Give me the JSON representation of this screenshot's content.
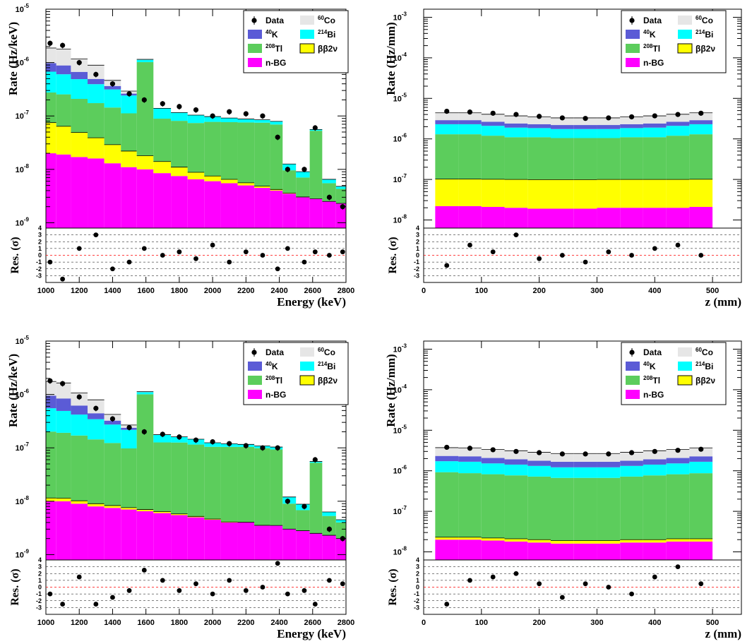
{
  "colors": {
    "co60": "#e6e6e6",
    "k40": "#5b5bd6",
    "bi214": "#00ffff",
    "tl208": "#5ccd5c",
    "bb2nu": "#ffff00",
    "nbg": "#ff00ff",
    "data": "#000000",
    "zero_line": "#ff0000"
  },
  "legend": {
    "data": "Data",
    "co60": {
      "sup": "60",
      "base": "Co"
    },
    "k40": {
      "sup": "40",
      "base": "K"
    },
    "bi214": {
      "sup": "214",
      "base": "Bi"
    },
    "tl208": {
      "sup": "208",
      "base": "Tl"
    },
    "bb2nu": "ββ2ν",
    "nbg": "n-BG"
  },
  "chart_data": [
    {
      "type": "stacked-histogram-with-residuals",
      "xlabel": "Energy (keV)",
      "ylabel": "Rate (Hz/keV)",
      "res_ylabel": "Res. (σ)",
      "xlim": [
        1000,
        2800
      ],
      "xticks": [
        "1000",
        "1200",
        "1400",
        "1600",
        "1800",
        "2000",
        "2200",
        "2400",
        "2600",
        "2800"
      ],
      "ylim_log": [
        -9.1,
        -5
      ],
      "yticks": [
        {
          "base": "10",
          "exp": "-9"
        },
        {
          "base": "10",
          "exp": "-8"
        },
        {
          "base": "10",
          "exp": "-7"
        },
        {
          "base": "10",
          "exp": "-6"
        },
        {
          "base": "10",
          "exp": "-5"
        }
      ],
      "res_ylim": [
        -4,
        4
      ],
      "res_yticks": [
        "-3",
        "-2",
        "-1",
        "0",
        "1",
        "2",
        "3",
        "4"
      ],
      "x": [
        1025,
        1100,
        1200,
        1300,
        1400,
        1500,
        1590,
        1700,
        1800,
        1900,
        2000,
        2100,
        2200,
        2300,
        2390,
        2450,
        2550,
        2615,
        2700,
        2780
      ],
      "components": {
        "nbg": [
          2e-08,
          1.9e-08,
          1.7e-08,
          1.6e-08,
          1.3e-08,
          1.1e-08,
          1e-08,
          8.5e-09,
          7.5e-09,
          6.5e-09,
          6e-09,
          5.5e-09,
          5e-09,
          4.5e-09,
          4e-09,
          3.5e-09,
          3e-09,
          2.8e-09,
          2.5e-09,
          2.3e-09
        ],
        "bb2nu": [
          5.5e-08,
          4.5e-08,
          3.2e-08,
          2.3e-08,
          1.6e-08,
          1.1e-08,
          8e-09,
          5.5e-09,
          3.5e-09,
          2.3e-09,
          1.5e-09,
          1e-09,
          6e-10,
          3.5e-10,
          2e-10,
          1e-10,
          4e-11,
          2e-11,
          1e-11,
          5e-12
        ],
        "tl208": [
          2e-07,
          1.9e-07,
          1.6e-07,
          1.35e-07,
          1.15e-07,
          9e-08,
          1e-06,
          7.5e-08,
          7e-08,
          6.5e-08,
          7e-08,
          7e-08,
          7e-08,
          7e-08,
          6.5e-08,
          6e-09,
          4e-09,
          5e-08,
          3e-09,
          2e-09
        ],
        "bi214": [
          4e-07,
          3.5e-07,
          2.8e-07,
          2.2e-07,
          1.7e-07,
          1.3e-07,
          1.1e-07,
          5e-08,
          3.5e-08,
          3e-08,
          2e-08,
          1.5e-08,
          1.2e-08,
          1e-08,
          1e-08,
          3e-09,
          2e-09,
          3e-09,
          1e-09,
          5e-10
        ],
        "k40": [
          3e-07,
          2.8e-07,
          1.8e-07,
          1e-07,
          5e-08,
          2e-08,
          0,
          0,
          0,
          0,
          0,
          0,
          0,
          0,
          0,
          0,
          0,
          0,
          0,
          0
        ],
        "co60": [
          9e-07,
          9e-07,
          5e-07,
          4e-07,
          1e-07,
          3e-08,
          2e-08,
          0,
          0,
          0,
          0,
          0,
          0,
          0,
          0,
          0,
          0,
          0,
          0,
          0
        ]
      },
      "data_y": [
        2.3e-06,
        2.1e-06,
        1e-06,
        6e-07,
        4e-07,
        2.6e-07,
        2e-07,
        1.7e-07,
        1.5e-07,
        1.3e-07,
        1e-07,
        1.2e-07,
        1.1e-07,
        1e-07,
        4e-08,
        1e-08,
        1e-08,
        6e-08,
        3e-09,
        2e-09
      ],
      "residuals": [
        -1.0,
        -3.5,
        1.0,
        3.0,
        -2.0,
        -1.0,
        1.0,
        0.0,
        0.5,
        -0.5,
        1.5,
        -1.0,
        0.5,
        0.0,
        -2.0,
        1.0,
        -1.0,
        0.5,
        0.0,
        0.5
      ]
    },
    {
      "type": "stacked-histogram-with-residuals",
      "xlabel": "z (mm)",
      "ylabel": "Rate (Hz/mm)",
      "res_ylabel": "Res. (σ)",
      "xlim": [
        0,
        550
      ],
      "xticks": [
        "0",
        "100",
        "200",
        "300",
        "400",
        "500"
      ],
      "ylim_log": [
        -8.2,
        -2.8
      ],
      "yticks": [
        {
          "base": "10",
          "exp": "-8"
        },
        {
          "base": "10",
          "exp": "-7"
        },
        {
          "base": "10",
          "exp": "-6"
        },
        {
          "base": "10",
          "exp": "-5"
        },
        {
          "base": "10",
          "exp": "-4"
        },
        {
          "base": "10",
          "exp": "-3"
        }
      ],
      "res_ylim": [
        -4,
        4
      ],
      "res_yticks": [
        "-3",
        "-2",
        "-1",
        "0",
        "1",
        "2",
        "3",
        "4"
      ],
      "x": [
        40,
        80,
        120,
        160,
        200,
        240,
        280,
        320,
        360,
        400,
        440,
        480
      ],
      "components": {
        "nbg": [
          2.2e-08,
          2.2e-08,
          2.1e-08,
          2e-08,
          1.9e-08,
          1.9e-08,
          1.9e-08,
          2e-08,
          2e-08,
          2e-08,
          2e-08,
          2.1e-08
        ],
        "bb2nu": [
          8e-08,
          8e-08,
          8e-08,
          8e-08,
          8e-08,
          8e-08,
          8e-08,
          8e-08,
          8e-08,
          8e-08,
          8e-08,
          8e-08
        ],
        "tl208": [
          1.2e-06,
          1.2e-06,
          1.1e-06,
          1e-06,
          1e-06,
          9.5e-07,
          9.5e-07,
          9.5e-07,
          1e-06,
          1e-06,
          1.1e-06,
          1.2e-06
        ],
        "bi214": [
          1e-06,
          1e-06,
          9e-07,
          8e-07,
          7.5e-07,
          7e-07,
          7e-07,
          7e-07,
          7.5e-07,
          8e-07,
          9e-07,
          1e-06
        ],
        "k40": [
          6e-07,
          6e-07,
          5.5e-07,
          5e-07,
          4.5e-07,
          4.5e-07,
          4.5e-07,
          4.5e-07,
          4.5e-07,
          5e-07,
          5.5e-07,
          6e-07
        ],
        "co60": [
          1.5e-06,
          1.5e-06,
          1.4e-06,
          1.3e-06,
          1.2e-06,
          1.1e-06,
          1.1e-06,
          1.1e-06,
          1.2e-06,
          1.3e-06,
          1.4e-06,
          1.5e-06
        ]
      },
      "data_y": [
        4.8e-06,
        4.6e-06,
        4.3e-06,
        4e-06,
        3.6e-06,
        3.3e-06,
        3.2e-06,
        3.3e-06,
        3.5e-06,
        3.7e-06,
        4e-06,
        4.3e-06
      ],
      "residuals": [
        -1.5,
        1.5,
        0.5,
        3.0,
        -0.5,
        0.0,
        -1.0,
        0.5,
        0.0,
        1.0,
        1.5,
        0.0
      ]
    },
    {
      "type": "stacked-histogram-with-residuals",
      "xlabel": "Energy (keV)",
      "ylabel": "Rate (Hz/keV)",
      "res_ylabel": "Res. (σ)",
      "xlim": [
        1000,
        2800
      ],
      "xticks": [
        "1000",
        "1200",
        "1400",
        "1600",
        "1800",
        "2000",
        "2200",
        "2400",
        "2600",
        "2800"
      ],
      "ylim_log": [
        -9.1,
        -5
      ],
      "yticks": [
        {
          "base": "10",
          "exp": "-9"
        },
        {
          "base": "10",
          "exp": "-8"
        },
        {
          "base": "10",
          "exp": "-7"
        },
        {
          "base": "10",
          "exp": "-6"
        },
        {
          "base": "10",
          "exp": "-5"
        }
      ],
      "res_ylim": [
        -4,
        4
      ],
      "res_yticks": [
        "-3",
        "-2",
        "-1",
        "0",
        "1",
        "2",
        "3",
        "4"
      ],
      "x": [
        1025,
        1100,
        1200,
        1300,
        1400,
        1500,
        1590,
        1700,
        1800,
        1900,
        2000,
        2100,
        2200,
        2300,
        2390,
        2450,
        2550,
        2615,
        2700,
        2780
      ],
      "components": {
        "nbg": [
          1e-08,
          1e-08,
          9e-09,
          8e-09,
          7.5e-09,
          7e-09,
          6.5e-09,
          6e-09,
          5.5e-09,
          5e-09,
          4.5e-09,
          4e-09,
          4e-09,
          3.5e-09,
          3.5e-09,
          3e-09,
          2.8e-09,
          2.5e-09,
          2.3e-09,
          2e-09
        ],
        "bb2nu": [
          1.5e-09,
          1.4e-09,
          1.2e-09,
          1e-09,
          8e-10,
          6e-10,
          5e-10,
          4e-10,
          3e-10,
          2e-10,
          1.5e-10,
          1e-10,
          6e-11,
          4e-11,
          2e-11,
          1e-11,
          5e-12,
          2e-12,
          1e-12,
          5e-13
        ],
        "tl208": [
          1.9e-07,
          1.8e-07,
          1.6e-07,
          1.35e-07,
          1.15e-07,
          9e-08,
          1e-06,
          1.2e-07,
          1.2e-07,
          1.1e-07,
          1e-07,
          1e-07,
          1e-07,
          9.5e-08,
          9e-08,
          6e-09,
          4e-09,
          5e-08,
          3e-09,
          2e-09
        ],
        "bi214": [
          3.5e-07,
          3e-07,
          2.5e-07,
          2e-07,
          1.5e-07,
          1.2e-07,
          1e-07,
          5e-08,
          3.5e-08,
          3e-08,
          2e-08,
          1.5e-08,
          1.2e-08,
          1e-08,
          1e-08,
          3e-09,
          2e-09,
          3e-09,
          1e-09,
          5e-10
        ],
        "k40": [
          4e-07,
          3.5e-07,
          2e-07,
          1e-07,
          5e-08,
          2e-08,
          0,
          0,
          0,
          0,
          0,
          0,
          0,
          0,
          0,
          0,
          0,
          0,
          0,
          0
        ],
        "co60": [
          8e-07,
          8e-07,
          4.5e-07,
          3.5e-07,
          1e-07,
          3e-08,
          2e-08,
          0,
          0,
          0,
          0,
          0,
          0,
          0,
          0,
          0,
          0,
          0,
          0,
          0
        ]
      },
      "data_y": [
        1.8e-06,
        1.6e-06,
        9e-07,
        5.5e-07,
        3.5e-07,
        2.4e-07,
        2e-07,
        1.8e-07,
        1.6e-07,
        1.4e-07,
        1.3e-07,
        1.2e-07,
        1.1e-07,
        1e-07,
        1e-07,
        1e-08,
        8e-09,
        6e-08,
        3e-09,
        2e-09
      ],
      "residuals": [
        -1.0,
        -2.5,
        1.5,
        -2.5,
        -1.5,
        -0.5,
        2.5,
        1.0,
        -0.5,
        0.5,
        -1.0,
        1.0,
        -0.5,
        0.0,
        3.5,
        -1.0,
        -0.5,
        -2.5,
        1.0,
        0.5
      ]
    },
    {
      "type": "stacked-histogram-with-residuals",
      "xlabel": "z (mm)",
      "ylabel": "Rate (Hz/mm)",
      "res_ylabel": "Res. (σ)",
      "xlim": [
        0,
        550
      ],
      "xticks": [
        "0",
        "100",
        "200",
        "300",
        "400",
        "500"
      ],
      "ylim_log": [
        -8.2,
        -2.8
      ],
      "yticks": [
        {
          "base": "10",
          "exp": "-8"
        },
        {
          "base": "10",
          "exp": "-7"
        },
        {
          "base": "10",
          "exp": "-6"
        },
        {
          "base": "10",
          "exp": "-5"
        },
        {
          "base": "10",
          "exp": "-4"
        },
        {
          "base": "10",
          "exp": "-3"
        }
      ],
      "res_ylim": [
        -4,
        4
      ],
      "res_yticks": [
        "-3",
        "-2",
        "-1",
        "0",
        "1",
        "2",
        "3",
        "4"
      ],
      "x": [
        40,
        80,
        120,
        160,
        200,
        240,
        280,
        320,
        360,
        400,
        440,
        480
      ],
      "components": {
        "nbg": [
          2e-08,
          2e-08,
          1.9e-08,
          1.8e-08,
          1.7e-08,
          1.6e-08,
          1.6e-08,
          1.6e-08,
          1.7e-08,
          1.7e-08,
          1.8e-08,
          1.8e-08
        ],
        "bb2nu": [
          3e-09,
          3e-09,
          3e-09,
          3e-09,
          3e-09,
          3e-09,
          3e-09,
          3e-09,
          3e-09,
          3e-09,
          3e-09,
          3e-09
        ],
        "tl208": [
          9e-07,
          8.5e-07,
          8e-07,
          7.5e-07,
          7e-07,
          6.5e-07,
          6.5e-07,
          6.5e-07,
          7e-07,
          7.5e-07,
          8e-07,
          8.5e-07
        ],
        "bi214": [
          8e-07,
          8e-07,
          7e-07,
          6.5e-07,
          6e-07,
          5.5e-07,
          5.5e-07,
          5.5e-07,
          6e-07,
          6.5e-07,
          7e-07,
          8e-07
        ],
        "k40": [
          6e-07,
          6e-07,
          5.5e-07,
          5e-07,
          4.5e-07,
          4.5e-07,
          4.5e-07,
          4.5e-07,
          4.5e-07,
          5e-07,
          5.5e-07,
          6e-07
        ],
        "co60": [
          1.4e-06,
          1.4e-06,
          1.3e-06,
          1.2e-06,
          1.1e-06,
          1e-06,
          1e-06,
          1e-06,
          1.1e-06,
          1.2e-06,
          1.3e-06,
          1.4e-06
        ]
      },
      "data_y": [
        3.8e-06,
        3.6e-06,
        3.3e-06,
        3e-06,
        2.8e-06,
        2.6e-06,
        2.6e-06,
        2.6e-06,
        2.8e-06,
        3e-06,
        3.2e-06,
        3.4e-06
      ],
      "residuals": [
        -2.5,
        1.0,
        1.5,
        2.0,
        0.5,
        -1.5,
        0.5,
        0.0,
        -1.0,
        1.5,
        3.0,
        0.5
      ]
    }
  ]
}
